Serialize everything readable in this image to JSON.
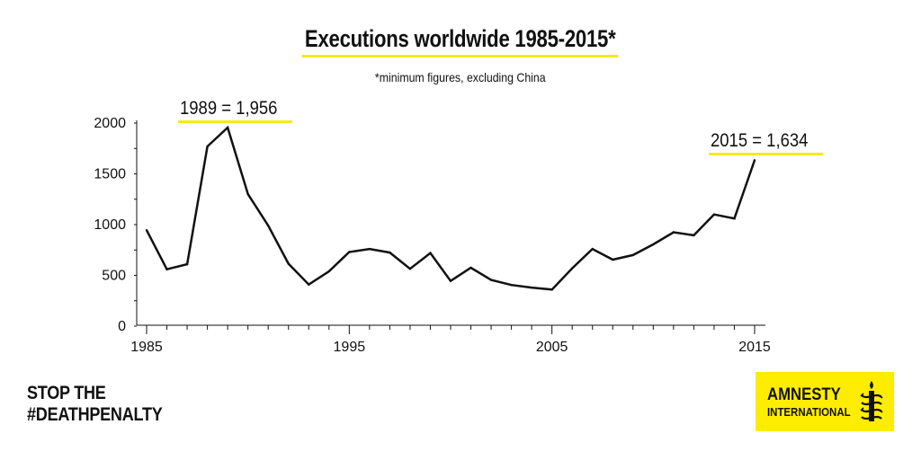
{
  "title": "Executions worldwide 1985-2015*",
  "subtitle": "*minimum figures, excluding China",
  "annotations": {
    "peak": "1989 = 1,956",
    "latest": "2015 = 1,634"
  },
  "tagline": {
    "line1": "STOP THE",
    "line2": "#DEATHPENALTY"
  },
  "logo": {
    "line1": "AMNESTY",
    "line2": "INTERNATIONAL",
    "icon": "candle-barbed-wire-icon"
  },
  "colors": {
    "accent": "#ffed00",
    "highlight": "#f4ea1a",
    "line": "#111111"
  },
  "chart_data": {
    "type": "line",
    "x": [
      1985,
      1986,
      1987,
      1988,
      1989,
      1990,
      1991,
      1992,
      1993,
      1994,
      1995,
      1996,
      1997,
      1998,
      1999,
      2000,
      2001,
      2002,
      2003,
      2004,
      2005,
      2006,
      2007,
      2008,
      2009,
      2010,
      2011,
      2012,
      2013,
      2014,
      2015
    ],
    "values": [
      945,
      560,
      610,
      1770,
      1956,
      1300,
      990,
      615,
      410,
      540,
      730,
      760,
      725,
      565,
      720,
      445,
      575,
      455,
      405,
      380,
      360,
      570,
      760,
      655,
      700,
      805,
      925,
      895,
      1100,
      1060,
      1634
    ],
    "xticks": [
      "1985",
      "1995",
      "2005",
      "2015"
    ],
    "xtick_values": [
      1985,
      1995,
      2005,
      2015
    ],
    "yticks": [
      "0",
      "500",
      "1000",
      "1500",
      "2000"
    ],
    "ytick_values": [
      0,
      500,
      1000,
      1500,
      2000
    ],
    "xlim": [
      1985,
      2015
    ],
    "ylim": [
      0,
      2000
    ],
    "title": "Executions worldwide 1985-2015*",
    "xlabel": "",
    "ylabel": "",
    "grid": false
  }
}
